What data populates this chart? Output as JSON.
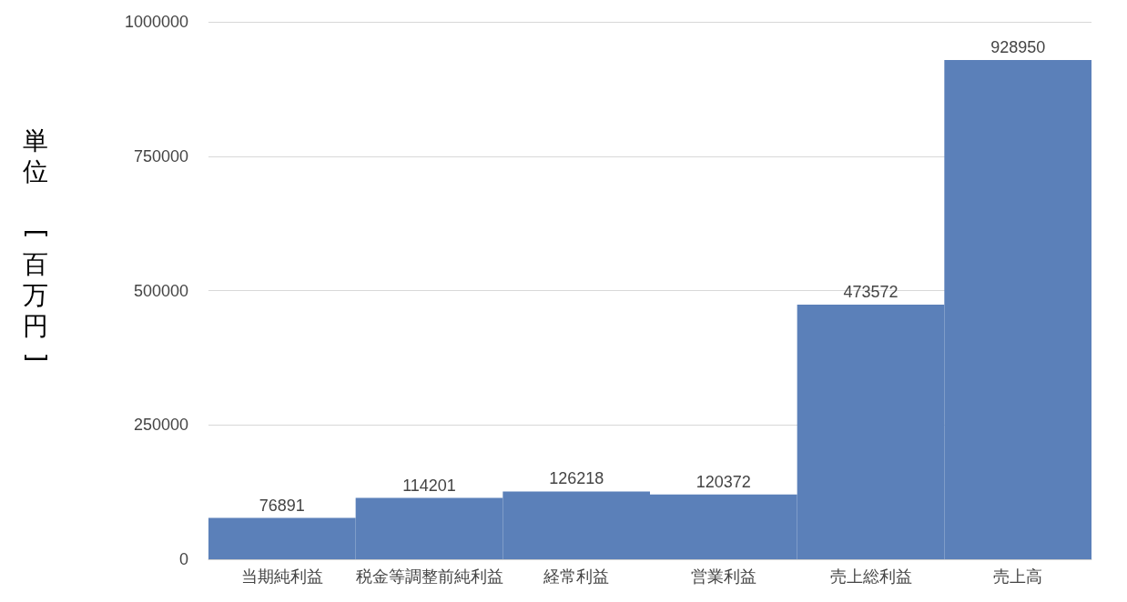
{
  "chart_data": {
    "type": "bar",
    "ylabel": "単位　[百万円]",
    "categories": [
      "当期純利益",
      "税金等調整前純利益",
      "経常利益",
      "営業利益",
      "売上総利益",
      "売上高"
    ],
    "values": [
      76891,
      114201,
      126218,
      120372,
      473572,
      928950
    ],
    "color": "#5b80b9",
    "ylim": [
      0,
      1000000
    ],
    "yticks": [
      0,
      250000,
      500000,
      750000,
      1000000
    ],
    "grid": "y",
    "data_labels": true
  }
}
